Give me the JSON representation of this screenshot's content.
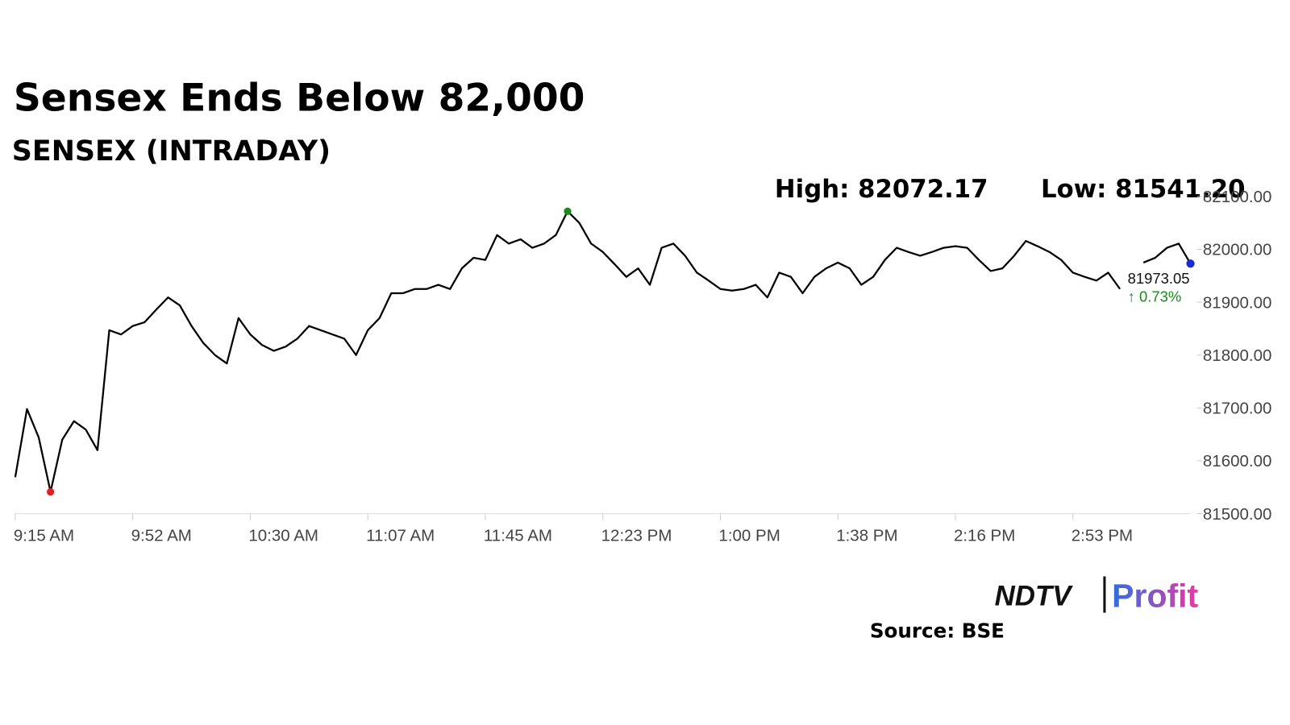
{
  "chart_data": {
    "type": "line",
    "title": "Sensex Ends Below 82,000",
    "subtitle": "SENSEX (INTRADAY)",
    "annotations": [
      "High: 82072.17",
      "Low: 81541.20"
    ],
    "change_label": "↑ 0.73%",
    "source": "Source: BSE",
    "logo": {
      "left": "NDTV",
      "right": "Profit"
    },
    "categories": [
      "9:15 AM",
      null,
      null,
      null,
      null,
      null,
      null,
      null,
      null,
      null,
      "9:52 AM",
      null,
      null,
      null,
      null,
      null,
      null,
      null,
      null,
      null,
      "10:30 AM",
      null,
      null,
      null,
      null,
      null,
      null,
      null,
      null,
      null,
      "11:07 AM",
      null,
      null,
      null,
      null,
      null,
      null,
      null,
      null,
      null,
      "11:45 AM",
      null,
      null,
      null,
      null,
      null,
      null,
      null,
      null,
      null,
      "12:23 PM",
      null,
      null,
      null,
      null,
      null,
      null,
      null,
      null,
      null,
      "1:00 PM",
      null,
      null,
      null,
      null,
      null,
      null,
      null,
      null,
      null,
      "1:38 PM",
      null,
      null,
      null,
      null,
      null,
      null,
      null,
      null,
      null,
      "2:16 PM",
      null,
      null,
      null,
      null,
      null,
      null,
      null,
      null,
      null,
      "2:53 PM",
      null,
      null,
      null,
      null,
      null,
      null,
      null,
      null,
      null,
      null
    ],
    "series": [
      {
        "name": "SENSEX",
        "color": "#000000",
        "values": [
          81569,
          81698,
          81644,
          81541.2,
          81640,
          81675,
          81659,
          81620,
          81847,
          81839,
          81855,
          81862,
          81886,
          81909,
          81894,
          81855,
          81823,
          81800,
          81784,
          81870,
          81839,
          81819,
          81808,
          81816,
          81831,
          81855,
          81847,
          81839,
          81831,
          81800,
          81847,
          81870,
          81917,
          81917,
          81925,
          81925,
          81933,
          81925,
          81964,
          81984,
          81980,
          82027,
          82011,
          82019,
          82003,
          82011,
          82027,
          82072.17,
          82050,
          82011,
          81995,
          81972,
          81948,
          81964,
          81933,
          82003,
          82011,
          81988,
          81956,
          81941,
          81925,
          81922,
          81925,
          81933,
          81909,
          81956,
          81948,
          81917,
          81948,
          81964,
          81975,
          81964,
          81933,
          81948,
          81980,
          82003,
          81995,
          81988,
          81995,
          82003,
          82006,
          82003,
          81980,
          81959,
          81964,
          81988,
          82016,
          82006,
          81995,
          81980,
          81956,
          81948,
          81941,
          81956,
          81925,
          null,
          81975,
          81984,
          82003,
          82011,
          81973.05
        ]
      }
    ],
    "marker_colors": {
      "high": "#1a8a1a",
      "low": "#e02020",
      "last": "#1a2acc"
    },
    "ylim": [
      81500,
      82100
    ],
    "yticks": [
      {
        "value": 81500,
        "label": "81500.00"
      },
      {
        "value": 81600,
        "label": "81600.00"
      },
      {
        "value": 81700,
        "label": "81700.00"
      },
      {
        "value": 81800,
        "label": "81800.00"
      },
      {
        "value": 81900,
        "label": "81900.00"
      },
      {
        "value": 82000,
        "label": "82000.00"
      },
      {
        "value": 82100,
        "label": "82100.00"
      }
    ],
    "grid": false
  }
}
